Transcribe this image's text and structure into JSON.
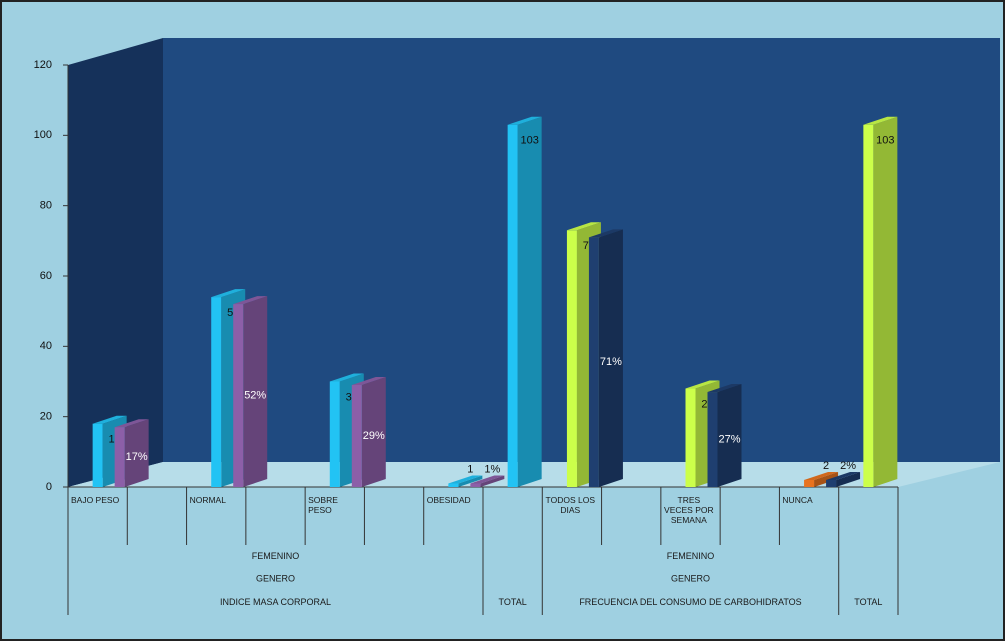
{
  "chart_data": {
    "type": "bar3d",
    "ylim": [
      0,
      120
    ],
    "yticks": [
      0,
      20,
      40,
      60,
      80,
      100,
      120
    ],
    "category_groups": [
      {
        "label": "INDICE MASA CORPORAL",
        "levels": [
          "FEMENINO",
          "GENERO"
        ],
        "categories": [
          "BAJO PESO",
          null,
          "NORMAL",
          null,
          "SOBRE PESO",
          null,
          "OBESIDAD"
        ]
      },
      {
        "label": "TOTAL",
        "categories": [
          null
        ]
      },
      {
        "label": "FRECUENCIA DEL CONSUMO DE CARBOHIDRATOS",
        "levels": [
          "FEMENINO",
          "GENERO"
        ],
        "categories": [
          "TODOS LOS DIAS",
          null,
          "TRES VECES POR SEMANA",
          null,
          "NUNCA"
        ]
      },
      {
        "label": "TOTAL",
        "categories": [
          null
        ]
      }
    ],
    "series": [
      {
        "values": [
          18,
          null,
          54,
          null,
          30,
          null,
          1,
          103,
          73,
          null,
          28,
          null,
          2,
          103
        ],
        "colors": [
          "#22c3f4",
          null,
          "#22c3f4",
          null,
          "#22c3f4",
          null,
          "#22c3f4",
          "#22c3f4",
          "#ccff4a",
          null,
          "#ccff4a",
          null,
          "#e8731f",
          "#ccff4a"
        ]
      },
      {
        "values": [
          17,
          null,
          52,
          null,
          29,
          null,
          1,
          null,
          71,
          null,
          27,
          null,
          2,
          null
        ],
        "value_labels": [
          "17%",
          null,
          "52%",
          null,
          "29%",
          null,
          "1%",
          null,
          "71%",
          null,
          "27%",
          null,
          "2%",
          null
        ],
        "colors": [
          "#8c5fa8",
          null,
          "#8c5fa8",
          null,
          "#8c5fa8",
          null,
          "#8c5fa8",
          null,
          "#1f3f70",
          null,
          "#1f3f70",
          null,
          "#1f3f70",
          null
        ]
      }
    ]
  }
}
